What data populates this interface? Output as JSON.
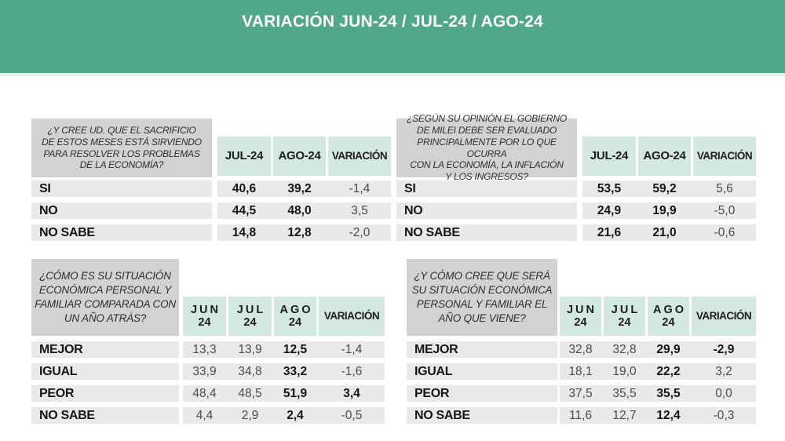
{
  "page": {
    "title": "VARIACIÓN JUN-24 / JUL-24 / AGO-24"
  },
  "colors": {
    "band_green": "#51a789",
    "band_underline": "#e3f0ea",
    "column_header_mint": "#d3e8e0",
    "question_gray": "#d2d2d2",
    "row_gray": "#e9e9e9",
    "text_dark": "#1d1d1b",
    "title_text": "#ffffff"
  },
  "tables": [
    {
      "id": "sacrificio-economia",
      "question": "¿Y CREE UD. QUE EL SACRIFICIO\nDE ESTOS MESES ESTÁ SIRVIENDO\nPARA RESOLVER LOS PROBLEMAS\nDE LA ECONOMÍA?",
      "columns": [
        {
          "label": "JUL-24"
        },
        {
          "label": "AGO-24"
        },
        {
          "label": "VARIACIÓN"
        }
      ],
      "rows": [
        {
          "label": "SI",
          "cells": [
            {
              "v": "40,6",
              "b": true
            },
            {
              "v": "39,2",
              "b": true
            },
            {
              "v": "-1,4",
              "b": false
            }
          ]
        },
        {
          "label": "NO",
          "cells": [
            {
              "v": "44,5",
              "b": true
            },
            {
              "v": "48,0",
              "b": true
            },
            {
              "v": "3,5",
              "b": false
            }
          ]
        },
        {
          "label": "NO SABE",
          "cells": [
            {
              "v": "14,8",
              "b": true
            },
            {
              "v": "12,8",
              "b": true
            },
            {
              "v": "-2,0",
              "b": false
            }
          ]
        }
      ]
    },
    {
      "id": "evaluacion-gobierno-milei",
      "question": "¿SEGÚN SU OPINIÓN EL GOBIERNO\nDE MILEI DEBE SER EVALUADO\nPRINCIPALMENTE POR LO QUE OCURRA\nCON LA ECONOMÍA, LA INFLACIÓN\nY LOS INGRESOS?",
      "columns": [
        {
          "label": "JUL-24"
        },
        {
          "label": "AGO-24"
        },
        {
          "label": "VARIACIÓN"
        }
      ],
      "rows": [
        {
          "label": "SI",
          "cells": [
            {
              "v": "53,5",
              "b": true
            },
            {
              "v": "59,2",
              "b": true
            },
            {
              "v": "5,6",
              "b": false
            }
          ]
        },
        {
          "label": "NO",
          "cells": [
            {
              "v": "24,9",
              "b": true
            },
            {
              "v": "19,9",
              "b": true
            },
            {
              "v": "-5,0",
              "b": false
            }
          ]
        },
        {
          "label": "NO SABE",
          "cells": [
            {
              "v": "21,6",
              "b": true
            },
            {
              "v": "21,0",
              "b": true
            },
            {
              "v": "-0,6",
              "b": false
            }
          ]
        }
      ]
    },
    {
      "id": "situacion-vs-ano-atras",
      "question": "¿CÓMO ES SU SITUACIÓN\nECONÓMICA PERSONAL Y\nFAMILIAR COMPARADA CON\nUN AÑO ATRÁS?",
      "columns": [
        {
          "label": "JUN",
          "sub": "24"
        },
        {
          "label": "JUL",
          "sub": "24"
        },
        {
          "label": "AGO",
          "sub": "24"
        },
        {
          "label": "VARIACIÓN"
        }
      ],
      "rows": [
        {
          "label": "MEJOR",
          "cells": [
            {
              "v": "13,3",
              "b": false
            },
            {
              "v": "13,9",
              "b": false
            },
            {
              "v": "12,5",
              "b": true
            },
            {
              "v": "-1,4",
              "b": false
            }
          ]
        },
        {
          "label": "IGUAL",
          "cells": [
            {
              "v": "33,9",
              "b": false
            },
            {
              "v": "34,8",
              "b": false
            },
            {
              "v": "33,2",
              "b": true
            },
            {
              "v": "-1,6",
              "b": false
            }
          ]
        },
        {
          "label": "PEOR",
          "cells": [
            {
              "v": "48,4",
              "b": false
            },
            {
              "v": "48,5",
              "b": false
            },
            {
              "v": "51,9",
              "b": true
            },
            {
              "v": "3,4",
              "b": true
            }
          ]
        },
        {
          "label": "NO SABE",
          "cells": [
            {
              "v": "4,4",
              "b": false
            },
            {
              "v": "2,9",
              "b": false
            },
            {
              "v": "2,4",
              "b": true
            },
            {
              "v": "-0,5",
              "b": false
            }
          ]
        }
      ]
    },
    {
      "id": "situacion-ano-que-viene",
      "question": "¿Y CÓMO CREE QUE SERÁ\nSU SITUACIÓN ECONÓMICA\nPERSONAL Y FAMILIAR EL\nAÑO QUE VIENE?",
      "columns": [
        {
          "label": "JUN",
          "sub": "24"
        },
        {
          "label": "JUL",
          "sub": "24"
        },
        {
          "label": "AGO",
          "sub": "24"
        },
        {
          "label": "VARIACIÓN"
        }
      ],
      "rows": [
        {
          "label": "MEJOR",
          "cells": [
            {
              "v": "32,8",
              "b": false
            },
            {
              "v": "32,8",
              "b": false
            },
            {
              "v": "29,9",
              "b": true
            },
            {
              "v": "-2,9",
              "b": true
            }
          ]
        },
        {
          "label": "IGUAL",
          "cells": [
            {
              "v": "18,1",
              "b": false
            },
            {
              "v": "19,0",
              "b": false
            },
            {
              "v": "22,2",
              "b": true
            },
            {
              "v": "3,2",
              "b": false
            }
          ]
        },
        {
          "label": "PEOR",
          "cells": [
            {
              "v": "37,5",
              "b": false
            },
            {
              "v": "35,5",
              "b": false
            },
            {
              "v": "35,5",
              "b": true
            },
            {
              "v": "0,0",
              "b": false
            }
          ]
        },
        {
          "label": "NO SABE",
          "cells": [
            {
              "v": "11,6",
              "b": false
            },
            {
              "v": "12,7",
              "b": false
            },
            {
              "v": "12,4",
              "b": true
            },
            {
              "v": "-0,3",
              "b": false
            }
          ]
        }
      ]
    }
  ],
  "chart_data": [
    {
      "type": "table",
      "title": "¿Y CREE UD. QUE EL SACRIFICIO DE ESTOS MESES ESTÁ SIRVIENDO PARA RESOLVER LOS PROBLEMAS DE LA ECONOMÍA?",
      "columns": [
        "",
        "JUL-24",
        "AGO-24",
        "VARIACIÓN"
      ],
      "rows": [
        [
          "SI",
          40.6,
          39.2,
          -1.4
        ],
        [
          "NO",
          44.5,
          48.0,
          3.5
        ],
        [
          "NO SABE",
          14.8,
          12.8,
          -2.0
        ]
      ]
    },
    {
      "type": "table",
      "title": "¿SEGÚN SU OPINIÓN EL GOBIERNO DE MILEI DEBE SER EVALUADO PRINCIPALMENTE POR LO QUE OCURRA CON LA ECONOMÍA, LA INFLACIÓN Y LOS INGRESOS?",
      "columns": [
        "",
        "JUL-24",
        "AGO-24",
        "VARIACIÓN"
      ],
      "rows": [
        [
          "SI",
          53.5,
          59.2,
          5.6
        ],
        [
          "NO",
          24.9,
          19.9,
          -5.0
        ],
        [
          "NO SABE",
          21.6,
          21.0,
          -0.6
        ]
      ]
    },
    {
      "type": "table",
      "title": "¿CÓMO ES SU SITUACIÓN ECONÓMICA PERSONAL Y FAMILIAR COMPARADA CON UN AÑO ATRÁS?",
      "columns": [
        "",
        "JUN-24",
        "JUL-24",
        "AGO-24",
        "VARIACIÓN"
      ],
      "rows": [
        [
          "MEJOR",
          13.3,
          13.9,
          12.5,
          -1.4
        ],
        [
          "IGUAL",
          33.9,
          34.8,
          33.2,
          -1.6
        ],
        [
          "PEOR",
          48.4,
          48.5,
          51.9,
          3.4
        ],
        [
          "NO SABE",
          4.4,
          2.9,
          2.4,
          -0.5
        ]
      ]
    },
    {
      "type": "table",
      "title": "¿Y CÓMO CREE QUE SERÁ SU SITUACIÓN ECONÓMICA PERSONAL Y FAMILIAR EL AÑO QUE VIENE?",
      "columns": [
        "",
        "JUN-24",
        "JUL-24",
        "AGO-24",
        "VARIACIÓN"
      ],
      "rows": [
        [
          "MEJOR",
          32.8,
          32.8,
          29.9,
          -2.9
        ],
        [
          "IGUAL",
          18.1,
          19.0,
          22.2,
          3.2
        ],
        [
          "PEOR",
          37.5,
          35.5,
          35.5,
          0.0
        ],
        [
          "NO SABE",
          11.6,
          12.7,
          12.4,
          -0.3
        ]
      ]
    }
  ]
}
